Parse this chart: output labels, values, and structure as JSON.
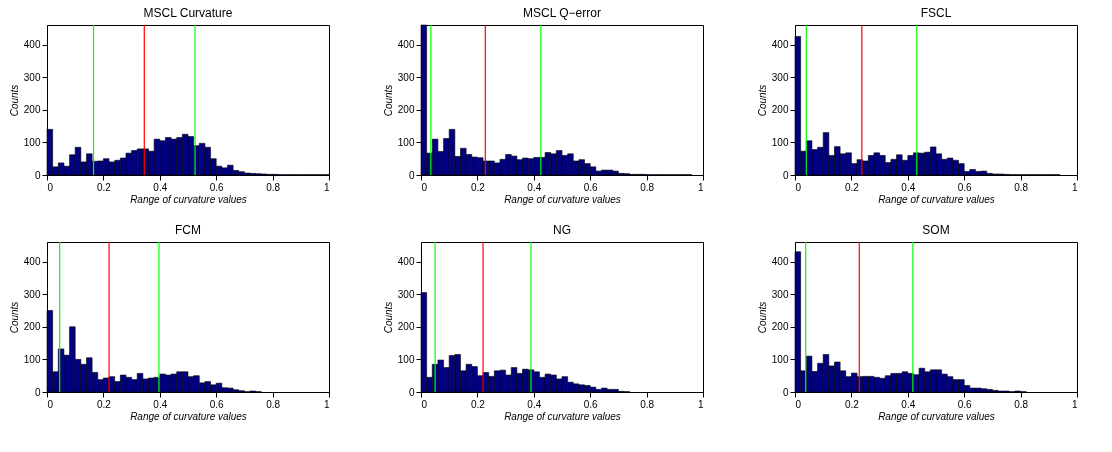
{
  "chart_data": [
    {
      "type": "histogram",
      "title": "MSCL Curvature",
      "xlabel": "Range of curvature values",
      "ylabel": "Counts",
      "color": "#000080",
      "xlim": [
        0,
        1
      ],
      "ylim": [
        0,
        460
      ],
      "xticks": [
        0,
        0.2,
        0.4,
        0.6,
        0.8,
        1
      ],
      "yticks": [
        0,
        100,
        200,
        300,
        400
      ],
      "bins": [
        0,
        0.02,
        0.04,
        0.06,
        0.08,
        0.1,
        0.12,
        0.14,
        0.16,
        0.18,
        0.2,
        0.22,
        0.24,
        0.26,
        0.28,
        0.3,
        0.32,
        0.34,
        0.36,
        0.38,
        0.4,
        0.42,
        0.44,
        0.46,
        0.48,
        0.5,
        0.52,
        0.54,
        0.56,
        0.58,
        0.6,
        0.62,
        0.64,
        0.66,
        0.68,
        0.7,
        0.72,
        0.74,
        0.76,
        0.78,
        0.8,
        0.82,
        0.84,
        0.86,
        0.88,
        0.9,
        0.92,
        0.94,
        0.96,
        0.98,
        1
      ],
      "values": [
        140,
        25,
        37,
        27,
        62,
        85,
        40,
        65,
        42,
        43,
        50,
        40,
        45,
        52,
        67,
        75,
        80,
        80,
        73,
        110,
        105,
        115,
        110,
        115,
        125,
        118,
        90,
        97,
        85,
        50,
        27,
        22,
        30,
        14,
        10,
        6,
        5,
        4,
        3,
        2,
        2,
        1,
        1,
        1,
        1,
        1,
        1,
        1,
        1,
        1
      ],
      "ref_lines": [
        {
          "axis": "x",
          "value": 0.165,
          "color": "#00ff00"
        },
        {
          "axis": "x",
          "value": 0.345,
          "color": "#ff0000"
        },
        {
          "axis": "x",
          "value": 0.525,
          "color": "#00ff00"
        }
      ]
    },
    {
      "type": "histogram",
      "title": "MSCL Q−error",
      "xlabel": "Range of curvature values",
      "ylabel": "Counts",
      "color": "#000080",
      "xlim": [
        0,
        1
      ],
      "ylim": [
        0,
        460
      ],
      "xticks": [
        0,
        0.2,
        0.4,
        0.6,
        0.8,
        1
      ],
      "yticks": [
        0,
        100,
        200,
        300,
        400
      ],
      "bins": [
        0,
        0.02,
        0.04,
        0.06,
        0.08,
        0.1,
        0.12,
        0.14,
        0.16,
        0.18,
        0.2,
        0.22,
        0.24,
        0.26,
        0.28,
        0.3,
        0.32,
        0.34,
        0.36,
        0.38,
        0.4,
        0.42,
        0.44,
        0.46,
        0.48,
        0.5,
        0.52,
        0.54,
        0.56,
        0.58,
        0.6,
        0.62,
        0.64,
        0.66,
        0.68,
        0.7,
        0.72,
        0.74,
        0.76,
        0.78,
        0.8,
        0.82,
        0.84,
        0.86,
        0.88,
        0.9,
        0.92,
        0.94,
        0.96,
        0.98,
        1
      ],
      "values": [
        460,
        67,
        110,
        72,
        112,
        140,
        57,
        82,
        63,
        55,
        53,
        43,
        43,
        37,
        48,
        63,
        58,
        47,
        52,
        50,
        54,
        54,
        69,
        65,
        75,
        60,
        65,
        43,
        47,
        35,
        25,
        12,
        15,
        15,
        12,
        5,
        4,
        2,
        2,
        2,
        1,
        1,
        1,
        1,
        1,
        1,
        1,
        1,
        0,
        0
      ],
      "ref_lines": [
        {
          "axis": "x",
          "value": 0.035,
          "color": "#00ff00"
        },
        {
          "axis": "x",
          "value": 0.228,
          "color": "#ff0000"
        },
        {
          "axis": "x",
          "value": 0.425,
          "color": "#00ff00"
        }
      ]
    },
    {
      "type": "histogram",
      "title": "FSCL",
      "xlabel": "Range of curvature values",
      "ylabel": "Counts",
      "color": "#000080",
      "xlim": [
        0,
        1
      ],
      "ylim": [
        0,
        460
      ],
      "xticks": [
        0,
        0.2,
        0.4,
        0.6,
        0.8,
        1
      ],
      "yticks": [
        0,
        100,
        200,
        300,
        400
      ],
      "bins": [
        0,
        0.02,
        0.04,
        0.06,
        0.08,
        0.1,
        0.12,
        0.14,
        0.16,
        0.18,
        0.2,
        0.22,
        0.24,
        0.26,
        0.28,
        0.3,
        0.32,
        0.34,
        0.36,
        0.38,
        0.4,
        0.42,
        0.44,
        0.46,
        0.48,
        0.5,
        0.52,
        0.54,
        0.56,
        0.58,
        0.6,
        0.62,
        0.64,
        0.66,
        0.68,
        0.7,
        0.72,
        0.74,
        0.76,
        0.78,
        0.8,
        0.82,
        0.84,
        0.86,
        0.88,
        0.9,
        0.92,
        0.94,
        0.96,
        0.98,
        1
      ],
      "values": [
        425,
        73,
        105,
        78,
        85,
        130,
        60,
        87,
        65,
        68,
        35,
        47,
        43,
        60,
        68,
        60,
        38,
        48,
        62,
        45,
        60,
        68,
        67,
        70,
        86,
        65,
        48,
        52,
        45,
        35,
        11,
        17,
        11,
        12,
        5,
        3,
        3,
        2,
        1,
        1,
        1,
        1,
        1,
        1,
        1,
        1,
        1,
        0,
        0,
        0
      ],
      "ref_lines": [
        {
          "axis": "x",
          "value": 0.04,
          "color": "#00ff00"
        },
        {
          "axis": "x",
          "value": 0.237,
          "color": "#ff0000"
        },
        {
          "axis": "x",
          "value": 0.432,
          "color": "#00ff00"
        }
      ]
    },
    {
      "type": "histogram",
      "title": "FCM",
      "xlabel": "Range of curvature values",
      "ylabel": "Counts",
      "color": "#000080",
      "xlim": [
        0,
        1
      ],
      "ylim": [
        0,
        460
      ],
      "xticks": [
        0,
        0.2,
        0.4,
        0.6,
        0.8,
        1
      ],
      "yticks": [
        0,
        100,
        200,
        300,
        400
      ],
      "bins": [
        0,
        0.02,
        0.04,
        0.06,
        0.08,
        0.1,
        0.12,
        0.14,
        0.16,
        0.18,
        0.2,
        0.22,
        0.24,
        0.26,
        0.28,
        0.3,
        0.32,
        0.34,
        0.36,
        0.38,
        0.4,
        0.42,
        0.44,
        0.46,
        0.48,
        0.5,
        0.52,
        0.54,
        0.56,
        0.58,
        0.6,
        0.62,
        0.64,
        0.66,
        0.68,
        0.7,
        0.72,
        0.74,
        0.76,
        0.78,
        0.8,
        0.82,
        0.84,
        0.86,
        0.88,
        0.9,
        0.92,
        0.94,
        0.96,
        0.98,
        1
      ],
      "values": [
        250,
        62,
        132,
        113,
        200,
        100,
        85,
        105,
        60,
        38,
        43,
        47,
        32,
        52,
        45,
        38,
        57,
        40,
        43,
        45,
        55,
        52,
        55,
        62,
        62,
        47,
        50,
        28,
        32,
        22,
        27,
        13,
        12,
        7,
        4,
        1,
        3,
        1,
        0,
        0,
        0,
        0,
        0,
        0,
        0,
        0,
        0,
        0,
        0,
        0
      ],
      "ref_lines": [
        {
          "axis": "x",
          "value": 0.045,
          "color": "#00ff00"
        },
        {
          "axis": "x",
          "value": 0.22,
          "color": "#ff0000"
        },
        {
          "axis": "x",
          "value": 0.397,
          "color": "#00ff00"
        }
      ]
    },
    {
      "type": "histogram",
      "title": "NG",
      "xlabel": "Range of curvature values",
      "ylabel": "Counts",
      "color": "#000080",
      "xlim": [
        0,
        1
      ],
      "ylim": [
        0,
        460
      ],
      "xticks": [
        0,
        0.2,
        0.4,
        0.6,
        0.8,
        1
      ],
      "yticks": [
        0,
        100,
        200,
        300,
        400
      ],
      "bins": [
        0,
        0.02,
        0.04,
        0.06,
        0.08,
        0.1,
        0.12,
        0.14,
        0.16,
        0.18,
        0.2,
        0.22,
        0.24,
        0.26,
        0.28,
        0.3,
        0.32,
        0.34,
        0.36,
        0.38,
        0.4,
        0.42,
        0.44,
        0.46,
        0.48,
        0.5,
        0.52,
        0.54,
        0.56,
        0.58,
        0.6,
        0.62,
        0.64,
        0.66,
        0.68,
        0.7,
        0.72,
        0.74,
        0.76,
        0.78,
        0.8,
        0.82,
        0.84,
        0.86,
        0.88,
        0.9,
        0.92,
        0.94,
        0.96,
        0.98,
        1
      ],
      "values": [
        305,
        45,
        85,
        98,
        75,
        112,
        115,
        65,
        85,
        78,
        50,
        60,
        48,
        65,
        67,
        52,
        75,
        57,
        70,
        68,
        62,
        45,
        55,
        52,
        40,
        47,
        30,
        25,
        22,
        20,
        15,
        8,
        12,
        8,
        8,
        2,
        1,
        0,
        0,
        0,
        0,
        0,
        0,
        0,
        0,
        0,
        0,
        0,
        0,
        0
      ],
      "ref_lines": [
        {
          "axis": "x",
          "value": 0.05,
          "color": "#00ff00"
        },
        {
          "axis": "x",
          "value": 0.22,
          "color": "#ff0000"
        },
        {
          "axis": "x",
          "value": 0.39,
          "color": "#00ff00"
        }
      ]
    },
    {
      "type": "histogram",
      "title": "SOM",
      "xlabel": "Range of curvature values",
      "ylabel": "Counts",
      "color": "#000080",
      "xlim": [
        0,
        1
      ],
      "ylim": [
        0,
        460
      ],
      "xticks": [
        0,
        0.2,
        0.4,
        0.6,
        0.8,
        1
      ],
      "yticks": [
        0,
        100,
        200,
        300,
        400
      ],
      "bins": [
        0,
        0.02,
        0.04,
        0.06,
        0.08,
        0.1,
        0.12,
        0.14,
        0.16,
        0.18,
        0.2,
        0.22,
        0.24,
        0.26,
        0.28,
        0.3,
        0.32,
        0.34,
        0.36,
        0.38,
        0.4,
        0.42,
        0.44,
        0.46,
        0.48,
        0.5,
        0.52,
        0.54,
        0.56,
        0.58,
        0.6,
        0.62,
        0.64,
        0.66,
        0.68,
        0.7,
        0.72,
        0.74,
        0.76,
        0.78,
        0.8,
        0.82,
        0.84,
        0.86,
        0.88,
        0.9,
        0.92,
        0.94,
        0.96,
        0.98,
        1
      ],
      "values": [
        430,
        65,
        110,
        63,
        88,
        115,
        80,
        92,
        65,
        47,
        58,
        47,
        48,
        48,
        45,
        42,
        50,
        57,
        57,
        62,
        57,
        53,
        73,
        62,
        68,
        68,
        55,
        47,
        38,
        38,
        20,
        12,
        12,
        10,
        8,
        5,
        3,
        3,
        1,
        3,
        1,
        0,
        0,
        0,
        0,
        0,
        0,
        0,
        0,
        0
      ],
      "ref_lines": [
        {
          "axis": "x",
          "value": 0.038,
          "color": "#00ff00"
        },
        {
          "axis": "x",
          "value": 0.228,
          "color": "#ff0000"
        },
        {
          "axis": "x",
          "value": 0.418,
          "color": "#00ff00"
        }
      ]
    }
  ]
}
